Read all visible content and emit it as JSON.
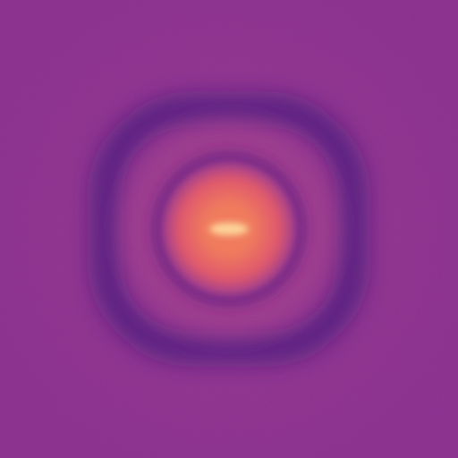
{
  "image": {
    "subject": "diffraction-pattern",
    "colormap": "magma",
    "colors": {
      "background": "#8a2f8e",
      "dark_ring": "#3d127a",
      "mid_ring_fill": "#9e3a8e",
      "inner_ring": "#6a1f82",
      "core_outer": "#e0566a",
      "core_mid": "#f27a5a",
      "core_hot": "#ffd79a"
    }
  }
}
